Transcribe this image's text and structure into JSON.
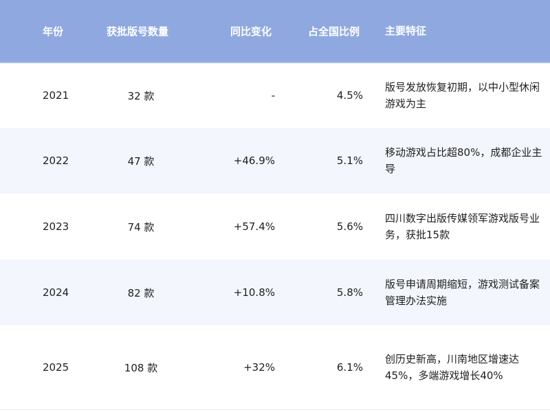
{
  "header": {
    "year": "年份",
    "count": "获批版号数量",
    "yoy": "同比变化",
    "share": "占全国比例",
    "feature": "主要特征"
  },
  "rows": [
    {
      "year": "2021",
      "count": "32 款",
      "yoy": "-",
      "share": "4.5%",
      "feature": "版号发放恢复初期，以中小型休闲游戏为主"
    },
    {
      "year": "2022",
      "count": "47 款",
      "yoy": "+46.9%",
      "share": "5.1%",
      "feature": "移动游戏占比超80%，成都企业主导"
    },
    {
      "year": "2023",
      "count": "74 款",
      "yoy": "+57.4%",
      "share": "5.6%",
      "feature": "四川数字出版传媒领军游戏版号业务，获批15款"
    },
    {
      "year": "2024",
      "count": "82 款",
      "yoy": "+10.8%",
      "share": "5.8%",
      "feature": "版号申请周期缩短，游戏测试备案管理办法实施"
    },
    {
      "year": "2025",
      "count": "108 款",
      "yoy": "+32%",
      "share": "6.1%",
      "feature": "创历史新高，川南地区增速达45%，多端游戏增长40%"
    }
  ],
  "colors": {
    "header_bg": "#8fa9e0",
    "alt_row_bg": "#f3f6fc"
  }
}
